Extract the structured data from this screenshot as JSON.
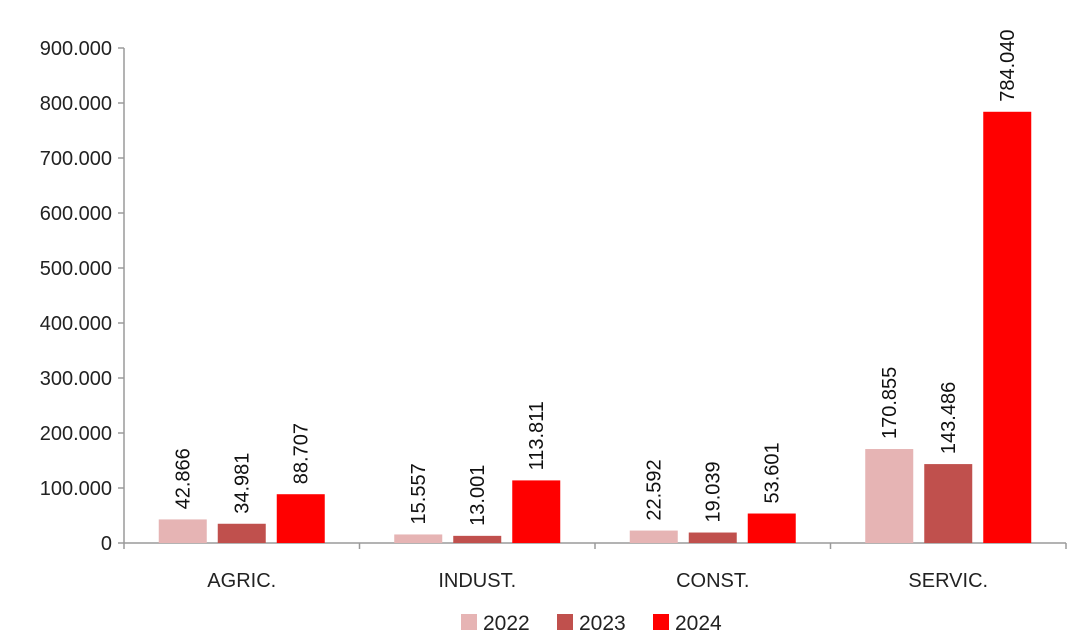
{
  "chart_data": {
    "type": "bar",
    "title": "",
    "xlabel": "",
    "ylabel": "",
    "categories": [
      "AGRIC.",
      "INDUST.",
      "CONST.",
      "SERVIC."
    ],
    "series": [
      {
        "name": "2022",
        "color": "#e6b4b4",
        "values": [
          42866,
          15557,
          22592,
          170855
        ],
        "labels": [
          "42.866",
          "15.557",
          "22.592",
          "170.855"
        ]
      },
      {
        "name": "2023",
        "color": "#c0504d",
        "values": [
          34981,
          13001,
          19039,
          143486
        ],
        "labels": [
          "34.981",
          "13.001",
          "19.039",
          "143.486"
        ]
      },
      {
        "name": "2024",
        "color": "#ff0000",
        "values": [
          88707,
          113811,
          53601,
          784040
        ],
        "labels": [
          "88.707",
          "113.811",
          "53.601",
          "784.040"
        ]
      }
    ],
    "ylim": [
      0,
      900000
    ],
    "yticks": [
      0,
      100000,
      200000,
      300000,
      400000,
      500000,
      600000,
      700000,
      800000,
      900000
    ],
    "ytick_labels": [
      "0",
      "100.000",
      "200.000",
      "300.000",
      "400.000",
      "500.000",
      "600.000",
      "700.000",
      "800.000",
      "900.000"
    ],
    "grid": false,
    "legend_position": "bottom"
  }
}
